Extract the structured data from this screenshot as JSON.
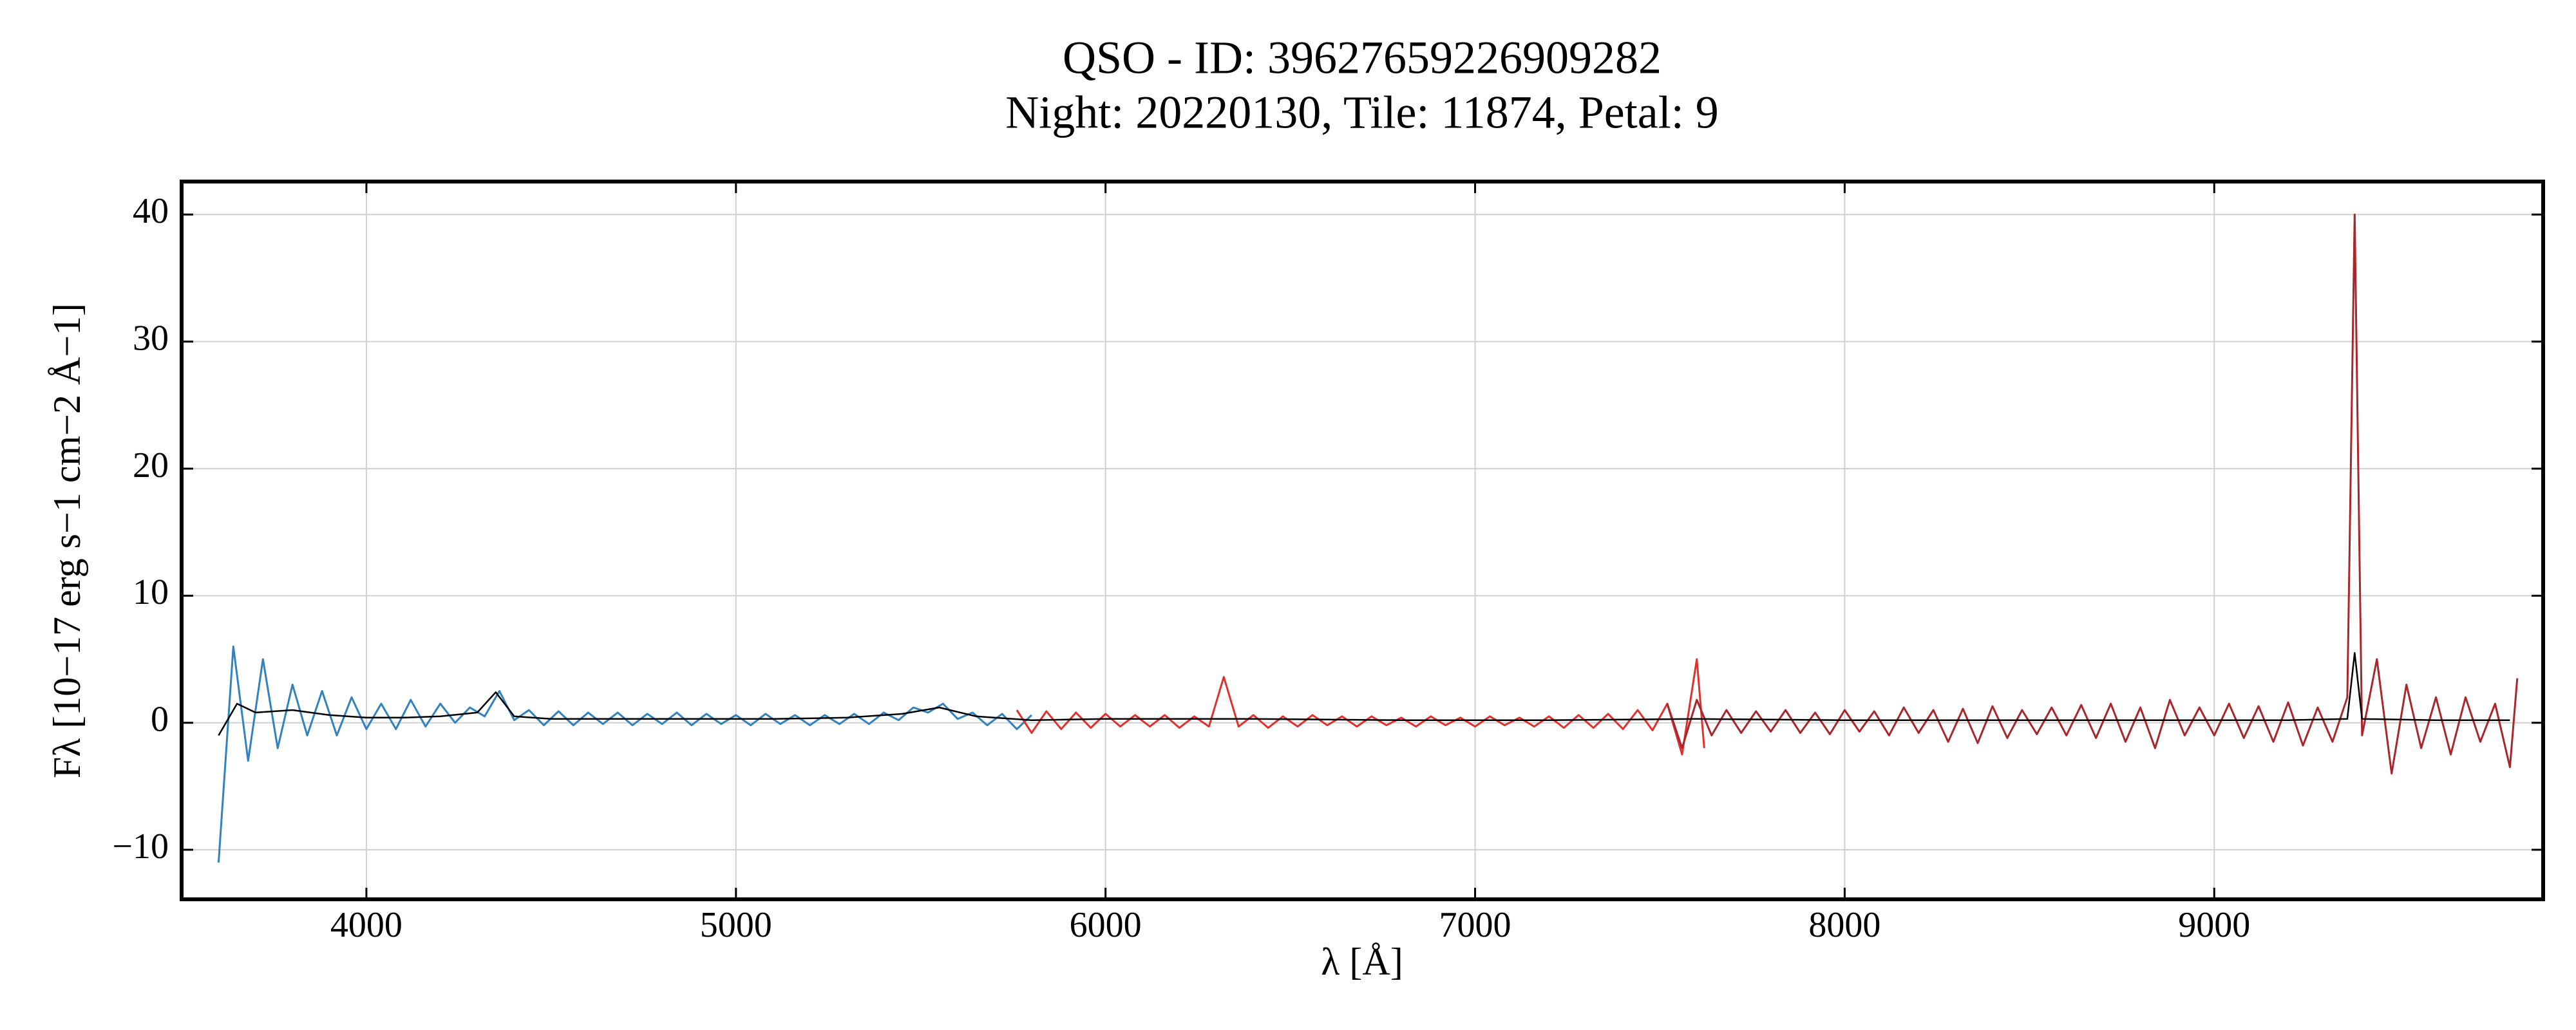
{
  "chart_data": {
    "type": "line",
    "title": "QSO - ID: 39627659226909282",
    "subtitle": "Night: 20220130, Tile: 11874, Petal: 9",
    "x_label": "λ [Å]",
    "y_label": "Fλ [10−17 erg s−1 cm−2 Å−1]",
    "xlim": [
      3500,
      9890
    ],
    "ylim": [
      -13.9,
      42.6
    ],
    "xticks": [
      4000,
      5000,
      6000,
      7000,
      8000,
      9000
    ],
    "yticks": [
      {
        "value": -10,
        "label": "−10"
      },
      0,
      10,
      20,
      30,
      40
    ],
    "grid": true,
    "series": [
      {
        "color": "#3182bd",
        "x": [
          3600,
          3640,
          3680,
          3720,
          3760,
          3800,
          3840,
          3880,
          3920,
          3960,
          4000,
          4040,
          4080,
          4120,
          4160,
          4200,
          4240,
          4280,
          4320,
          4360,
          4400,
          4440,
          4480,
          4520,
          4560,
          4600,
          4640,
          4680,
          4720,
          4760,
          4800,
          4840,
          4880,
          4920,
          4960,
          5000,
          5040,
          5080,
          5120,
          5160,
          5200,
          5240,
          5280,
          5320,
          5360,
          5400,
          5440,
          5480,
          5520,
          5560,
          5600,
          5640,
          5680,
          5720,
          5760,
          5800
        ],
        "values": [
          -11,
          6,
          -3,
          5,
          -2,
          3,
          -1,
          2.5,
          -1,
          2,
          -0.5,
          1.5,
          -0.5,
          1.8,
          -0.3,
          1.5,
          0,
          1.2,
          0.5,
          2.5,
          0.2,
          1,
          -0.2,
          0.9,
          -0.2,
          0.8,
          -0.1,
          0.8,
          -0.2,
          0.7,
          -0.1,
          0.8,
          -0.2,
          0.7,
          -0.1,
          0.6,
          -0.2,
          0.7,
          -0.1,
          0.6,
          -0.2,
          0.6,
          -0.1,
          0.7,
          -0.1,
          0.8,
          0.2,
          1.2,
          0.8,
          1.5,
          0.3,
          0.8,
          -0.2,
          0.7,
          -0.5,
          0.6
        ]
      },
      {
        "color": "#e0312f",
        "x": [
          5760,
          5800,
          5840,
          5880,
          5920,
          5960,
          6000,
          6040,
          6080,
          6120,
          6160,
          6200,
          6240,
          6280,
          6320,
          6360,
          6400,
          6440,
          6480,
          6520,
          6560,
          6600,
          6640,
          6680,
          6720,
          6760,
          6800,
          6840,
          6880,
          6920,
          6960,
          7000,
          7040,
          7080,
          7120,
          7160,
          7200,
          7240,
          7280,
          7320,
          7360,
          7400,
          7440,
          7480,
          7520,
          7560,
          7600,
          7620
        ],
        "values": [
          1,
          -0.8,
          0.9,
          -0.5,
          0.8,
          -0.4,
          0.7,
          -0.3,
          0.6,
          -0.3,
          0.6,
          -0.4,
          0.5,
          -0.3,
          3.6,
          -0.3,
          0.6,
          -0.4,
          0.5,
          -0.3,
          0.6,
          -0.2,
          0.5,
          -0.3,
          0.5,
          -0.2,
          0.4,
          -0.3,
          0.5,
          -0.2,
          0.4,
          -0.3,
          0.5,
          -0.2,
          0.4,
          -0.3,
          0.5,
          -0.4,
          0.6,
          -0.4,
          0.7,
          -0.5,
          1,
          -0.6,
          1.5,
          -2.5,
          5,
          -2
        ]
      },
      {
        "color": "#a8262c",
        "x": [
          7520,
          7560,
          7600,
          7640,
          7680,
          7720,
          7760,
          7800,
          7840,
          7880,
          7920,
          7960,
          8000,
          8040,
          8080,
          8120,
          8160,
          8200,
          8240,
          8280,
          8320,
          8360,
          8400,
          8440,
          8480,
          8520,
          8560,
          8600,
          8640,
          8680,
          8720,
          8760,
          8800,
          8840,
          8880,
          8920,
          8960,
          9000,
          9040,
          9080,
          9120,
          9160,
          9200,
          9240,
          9280,
          9320,
          9360,
          9380,
          9400,
          9440,
          9480,
          9520,
          9560,
          9600,
          9640,
          9680,
          9720,
          9760,
          9800,
          9820
        ],
        "values": [
          1.5,
          -2,
          1.8,
          -1,
          1,
          -0.8,
          0.9,
          -0.7,
          1,
          -0.8,
          0.8,
          -0.9,
          1,
          -0.7,
          0.9,
          -1,
          1.2,
          -0.8,
          1,
          -1.5,
          1.1,
          -1.6,
          1.3,
          -1.2,
          1,
          -0.9,
          1.2,
          -1,
          1.4,
          -1.2,
          1.5,
          -1.5,
          1.2,
          -2,
          1.8,
          -1,
          1.2,
          -1,
          1.5,
          -1.2,
          1.3,
          -1.5,
          1.6,
          -1.8,
          1.2,
          -1.5,
          2,
          40,
          -1,
          5,
          -4,
          3,
          -2,
          2,
          -2.5,
          2,
          -1.5,
          1.5,
          -3.5,
          3.5
        ]
      },
      {
        "color": "#000000",
        "x": [
          3600,
          3650,
          3700,
          3800,
          3900,
          4000,
          4100,
          4200,
          4300,
          4350,
          4400,
          4500,
          4700,
          4900,
          5100,
          5300,
          5450,
          5550,
          5650,
          5800,
          6000,
          6400,
          6800,
          7200,
          7600,
          8000,
          8400,
          8800,
          9200,
          9360,
          9380,
          9400,
          9600,
          9800
        ],
        "values": [
          -1,
          1.5,
          0.8,
          1,
          0.6,
          0.4,
          0.4,
          0.5,
          0.8,
          2.4,
          0.5,
          0.3,
          0.3,
          0.3,
          0.3,
          0.4,
          0.7,
          1.2,
          0.5,
          0.2,
          0.3,
          0.3,
          0.2,
          0.2,
          0.3,
          0.2,
          0.2,
          0.2,
          0.2,
          0.3,
          5.5,
          0.3,
          0.2,
          0.2
        ]
      }
    ]
  }
}
